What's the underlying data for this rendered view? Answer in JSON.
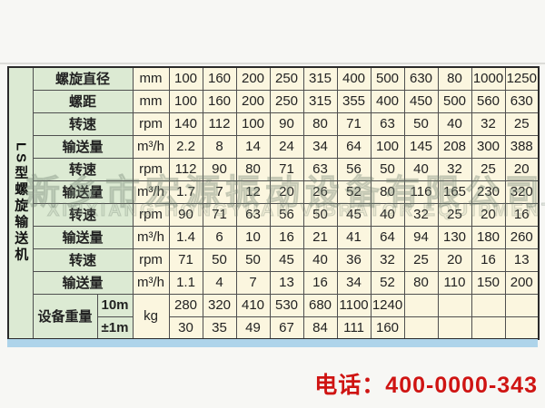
{
  "table": {
    "vertical_title": "LS型螺旋输送机",
    "colors": {
      "label_green": "#dcead3",
      "cell_cream": "#fbf6df",
      "grid": "#4f4f4f"
    },
    "rows": [
      {
        "label": "螺旋直径",
        "unit": "mm",
        "values": [
          "100",
          "160",
          "200",
          "250",
          "315",
          "400",
          "500",
          "630",
          "80",
          "1000",
          "1250"
        ]
      },
      {
        "label": "螺距",
        "unit": "mm",
        "values": [
          "100",
          "160",
          "200",
          "250",
          "315",
          "355",
          "400",
          "450",
          "500",
          "560",
          "630"
        ]
      },
      {
        "label": "转速",
        "unit": "rpm",
        "values": [
          "140",
          "112",
          "100",
          "90",
          "80",
          "71",
          "63",
          "50",
          "40",
          "32",
          "25"
        ]
      },
      {
        "label": "输送量",
        "unit": "m³/h",
        "values": [
          "2.2",
          "8",
          "14",
          "24",
          "34",
          "64",
          "100",
          "145",
          "208",
          "300",
          "388"
        ]
      },
      {
        "label": "转速",
        "unit": "rpm",
        "values": [
          "112",
          "90",
          "80",
          "71",
          "63",
          "56",
          "50",
          "40",
          "32",
          "25",
          "20"
        ]
      },
      {
        "label": "输送量",
        "unit": "m³/h",
        "values": [
          "1.7",
          "7",
          "12",
          "20",
          "26",
          "52",
          "80",
          "116",
          "165",
          "230",
          "320"
        ]
      },
      {
        "label": "转速",
        "unit": "rpm",
        "values": [
          "90",
          "71",
          "63",
          "56",
          "50",
          "45",
          "40",
          "32",
          "25",
          "20",
          "16"
        ]
      },
      {
        "label": "输送量",
        "unit": "m³/h",
        "values": [
          "1.4",
          "6",
          "10",
          "16",
          "21",
          "41",
          "64",
          "94",
          "130",
          "180",
          "260"
        ]
      },
      {
        "label": "转速",
        "unit": "rpm",
        "values": [
          "71",
          "50",
          "50",
          "45",
          "40",
          "36",
          "32",
          "25",
          "20",
          "16",
          "13"
        ]
      },
      {
        "label": "输送量",
        "unit": "m³/h",
        "values": [
          "1.1",
          "4",
          "7",
          "13",
          "16",
          "34",
          "52",
          "80",
          "110",
          "150",
          "200"
        ]
      }
    ],
    "weight": {
      "label": "设备重量",
      "unit": "kg",
      "rows": [
        {
          "sub": "10m",
          "values": [
            "280",
            "320",
            "410",
            "530",
            "680",
            "1100",
            "1240",
            "",
            "",
            "",
            ""
          ]
        },
        {
          "sub": "±1m",
          "values": [
            "30",
            "35",
            "49",
            "67",
            "84",
            "111",
            "160",
            "",
            "",
            "",
            ""
          ]
        }
      ]
    }
  },
  "watermark": {
    "line1": "新乡市宏源振动设备有限公司",
    "line2": "XINXIANG HONGYUAN VIBRATOR EQUIPMENT CO.,LTD"
  },
  "footer": {
    "phone": "电话：400-0000-343",
    "phone_color": "#cf1412"
  }
}
